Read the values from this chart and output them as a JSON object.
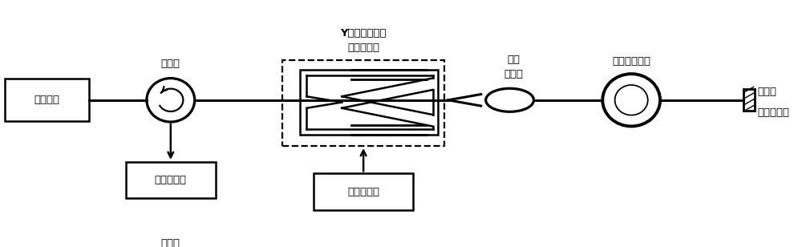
{
  "bg_color": "#ffffff",
  "line_color": "#000000",
  "labels": {
    "broadband_source": "宿谱光源",
    "circulator": "环形器",
    "photodetector": "光电探测器",
    "oscilloscope": "示波器",
    "y_waveguide_line1": "Y波导集成光学",
    "y_waveguide_line2": "相位调制器",
    "pbs_line1": "偏振",
    "pbs_line2": "分束器",
    "pm_fiber": "保偶延迟光纤",
    "signal_generator": "信号发生器",
    "faraday_line1": "法拉第",
    "faraday_line2": "旋光反射镜"
  }
}
